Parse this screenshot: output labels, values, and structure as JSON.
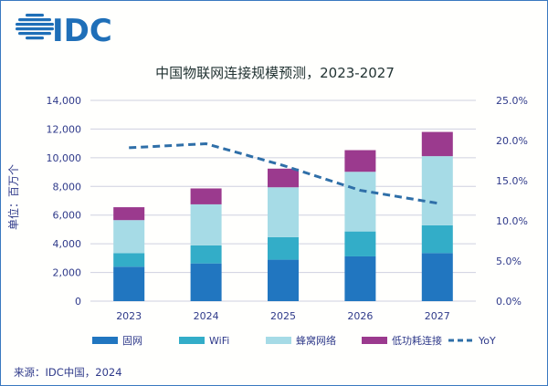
{
  "logo": {
    "text": "IDC",
    "color": "#1f6fb8"
  },
  "source": "来源：IDC中国，2024",
  "chart_data": {
    "type": "bar",
    "stacked": true,
    "title": "中国物联网连接规模预测，2023-2027",
    "ylabel": "单位：百万个",
    "categories": [
      "2023",
      "2024",
      "2025",
      "2026",
      "2027"
    ],
    "ylim": [
      0,
      14000
    ],
    "yticks": [
      "0",
      "2,000",
      "4,000",
      "6,000",
      "8,000",
      "10,000",
      "12,000",
      "14,000"
    ],
    "y2lim": [
      0,
      25
    ],
    "y2ticks": [
      "0.0%",
      "5.0%",
      "10.0%",
      "15.0%",
      "20.0%",
      "25.0%"
    ],
    "grid": true,
    "legend_position": "bottom",
    "series": [
      {
        "name": "固网",
        "color": "#2176c0",
        "values": [
          2400,
          2630,
          2890,
          3120,
          3350
        ]
      },
      {
        "name": "WiFi",
        "color": "#33adc8",
        "values": [
          950,
          1260,
          1570,
          1740,
          1940
        ]
      },
      {
        "name": "蜂窝网络",
        "color": "#a6dbe6",
        "values": [
          2300,
          2860,
          3480,
          4160,
          4820
        ]
      },
      {
        "name": "低功耗连接",
        "color": "#9b3a8e",
        "values": [
          900,
          1110,
          1300,
          1510,
          1690
        ]
      }
    ],
    "line_series": {
      "name": "YoY",
      "color": "#2f6fa8",
      "axis": "right",
      "style": "dashed",
      "values": [
        19.1,
        19.6,
        16.9,
        13.8,
        12.2
      ]
    }
  }
}
